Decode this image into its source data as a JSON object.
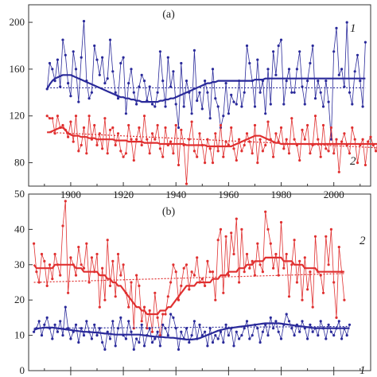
{
  "chart_data": [
    {
      "type": "line",
      "panel_label": "(a)",
      "x_start": 1891,
      "xlim": [
        1884,
        2014
      ],
      "ylim": [
        60,
        215
      ],
      "y_ticks": [
        80,
        120,
        160,
        200
      ],
      "x_ticks": [
        1900,
        1920,
        1940,
        1960,
        1980,
        2000
      ],
      "x_tick_labels_shown": true,
      "grid": false,
      "series": [
        {
          "name": "1",
          "color": "#2a2a9a",
          "values": [
            143,
            165,
            160,
            150,
            168,
            145,
            185,
            172,
            148,
            137,
            175,
            160,
            132,
            170,
            201,
            150,
            135,
            140,
            180,
            168,
            155,
            170,
            148,
            152,
            185,
            158,
            140,
            135,
            165,
            170,
            122,
            148,
            160,
            140,
            130,
            145,
            155,
            150,
            133,
            145,
            130,
            128,
            140,
            175,
            150,
            128,
            170,
            145,
            158,
            130,
            110,
            165,
            128,
            150,
            140,
            122,
            176,
            133,
            140,
            126,
            150,
            140,
            118,
            160,
            135,
            128,
            110,
            120,
            148,
            122,
            138,
            132,
            130,
            150,
            128,
            140,
            180,
            165,
            150,
            128,
            168,
            140,
            150,
            122,
            160,
            130,
            175,
            155,
            180,
            185,
            130,
            150,
            160,
            140,
            140,
            160,
            175,
            145,
            130,
            150,
            165,
            180,
            135,
            150,
            140,
            128,
            150,
            132,
            100,
            175,
            195,
            155,
            160,
            145,
            200,
            140,
            130,
            158,
            172,
            150,
            128,
            183
          ],
          "smooth": [
            143,
            147,
            150,
            152,
            153,
            154,
            155,
            155,
            155,
            155,
            154,
            153,
            152,
            151,
            150,
            149,
            148,
            147,
            146,
            145,
            144,
            143,
            142,
            141,
            140,
            139,
            138,
            137,
            136,
            136,
            135,
            135,
            134,
            134,
            133,
            133,
            132,
            132,
            132,
            132,
            132,
            132,
            132,
            133,
            133,
            134,
            134,
            135,
            135,
            136,
            137,
            138,
            139,
            140,
            141,
            142,
            143,
            144,
            145,
            146,
            147,
            148,
            148,
            149,
            149,
            150,
            150,
            150,
            150,
            150,
            150,
            150,
            150,
            150,
            150,
            150,
            150,
            150,
            150,
            151,
            151,
            151,
            151,
            152,
            152,
            152,
            152,
            152,
            152,
            152,
            152,
            152,
            152,
            152,
            152,
            152,
            152,
            152,
            152,
            152,
            152,
            152,
            152,
            152,
            152,
            152,
            152,
            152,
            152,
            152,
            152,
            152,
            152,
            152,
            152,
            152,
            152,
            152,
            152,
            152,
            152,
            152
          ],
          "trend": [
            144,
            144
          ]
        },
        {
          "name": "2",
          "color": "#e03030",
          "values": [
            120,
            118,
            118,
            105,
            120,
            110,
            112,
            108,
            102,
            115,
            98,
            120,
            90,
            95,
            110,
            88,
            120,
            100,
            112,
            95,
            105,
            92,
            118,
            88,
            108,
            110,
            95,
            105,
            90,
            85,
            88,
            112,
            100,
            82,
            100,
            110,
            95,
            120,
            100,
            88,
            105,
            100,
            112,
            92,
            85,
            110,
            95,
            98,
            88,
            112,
            78,
            108,
            95,
            62,
            100,
            115,
            90,
            85,
            105,
            95,
            80,
            100,
            92,
            80,
            105,
            90,
            112,
            85,
            98,
            95,
            110,
            92,
            82,
            100,
            90,
            95,
            105,
            98,
            88,
            112,
            80,
            100,
            90,
            95,
            115,
            100,
            85,
            105,
            98,
            110,
            92,
            100,
            88,
            118,
            100,
            95,
            82,
            108,
            100,
            112,
            88,
            95,
            120,
            100,
            85,
            112,
            92,
            90,
            110,
            88,
            100,
            72,
            98,
            105,
            95,
            88,
            110,
            100,
            80,
            95,
            100,
            78,
            98,
            102,
            95,
            90,
            100,
            88,
            102,
            98,
            95,
            100,
            90,
            82
          ],
          "smooth": [
            106,
            106,
            107,
            108,
            109,
            110,
            110,
            108,
            105,
            104,
            103,
            103,
            103,
            102,
            102,
            102,
            101,
            101,
            101,
            100,
            100,
            100,
            100,
            100,
            100,
            100,
            99,
            99,
            99,
            99,
            99,
            98,
            98,
            98,
            98,
            98,
            98,
            97,
            97,
            97,
            97,
            97,
            97,
            96,
            96,
            96,
            96,
            96,
            96,
            96,
            96,
            96,
            96,
            95,
            95,
            95,
            95,
            95,
            95,
            95,
            95,
            94,
            94,
            94,
            94,
            94,
            94,
            94,
            94,
            94,
            94,
            95,
            96,
            97,
            98,
            99,
            100,
            101,
            102,
            103,
            103,
            103,
            102,
            101,
            100,
            99,
            98,
            97,
            97,
            96,
            96,
            96,
            96,
            96,
            96,
            96,
            96,
            96,
            96,
            96,
            96,
            96,
            96,
            96,
            96,
            96,
            96,
            96,
            96,
            96,
            96,
            96,
            96,
            96,
            96,
            96,
            96,
            96,
            96,
            96,
            96,
            96,
            96,
            96,
            96,
            96,
            96,
            96,
            96,
            96,
            96,
            96,
            96,
            96
          ],
          "trend": [
            106,
            92
          ]
        }
      ]
    },
    {
      "type": "line",
      "panel_label": "(b)",
      "x_start": 1886,
      "xlim": [
        1884,
        2014
      ],
      "ylim": [
        0,
        50
      ],
      "y_ticks": [
        0,
        10,
        20,
        30,
        40,
        50
      ],
      "x_ticks": [
        1900,
        1920,
        1940,
        1960,
        1980,
        2000
      ],
      "x_tick_labels_shown": false,
      "grid": false,
      "series": [
        {
          "name": "2",
          "color": "#e03030",
          "values": [
            36,
            28,
            25,
            33,
            31,
            24,
            30,
            26,
            33,
            30,
            27,
            41,
            48,
            22,
            32,
            30,
            27,
            35,
            30,
            29,
            36,
            25,
            32,
            28,
            33,
            18,
            29,
            20,
            37,
            24,
            31,
            21,
            33,
            27,
            30,
            22,
            18,
            25,
            12,
            27,
            24,
            14,
            18,
            12,
            17,
            11,
            22,
            15,
            10,
            16,
            16,
            21,
            25,
            30,
            28,
            20,
            24,
            29,
            30,
            23,
            28,
            27,
            32,
            25,
            26,
            24,
            31,
            28,
            28,
            20,
            37,
            40,
            22,
            38,
            27,
            39,
            33,
            43,
            25,
            40,
            28,
            33,
            29,
            31,
            27,
            36,
            30,
            28,
            45,
            40,
            36,
            29,
            33,
            27,
            42,
            29,
            33,
            21,
            30,
            37,
            25,
            31,
            20,
            32,
            23,
            28,
            18,
            38,
            28,
            27,
            22,
            38,
            30,
            40,
            25,
            15,
            35,
            28,
            20
          ],
          "smooth": [
            30,
            29,
            29,
            29,
            29,
            29,
            29,
            29,
            30,
            30,
            30,
            30,
            30,
            30,
            30,
            30,
            29,
            29,
            29,
            28,
            28,
            28,
            28,
            28,
            28,
            27,
            27,
            27,
            26,
            26,
            25,
            25,
            24,
            24,
            23,
            22,
            21,
            20,
            19,
            18,
            18,
            17,
            17,
            16,
            16,
            16,
            16,
            16,
            17,
            17,
            17,
            18,
            18,
            19,
            20,
            21,
            22,
            23,
            24,
            24,
            24,
            24,
            25,
            25,
            25,
            25,
            25,
            25,
            26,
            26,
            26,
            27,
            27,
            27,
            28,
            28,
            28,
            28,
            29,
            29,
            29,
            30,
            30,
            30,
            31,
            31,
            31,
            31,
            32,
            32,
            32,
            32,
            32,
            32,
            32,
            31,
            31,
            31,
            31,
            30,
            30,
            30,
            30,
            29,
            29,
            29,
            29,
            29,
            28,
            28,
            28,
            28,
            28,
            28,
            28,
            28,
            28,
            28,
            28
          ],
          "trend": [
            25,
            27.5
          ]
        },
        {
          "name": "1",
          "color": "#2a2a9a",
          "values": [
            11,
            12,
            14,
            10,
            13,
            15,
            12,
            9,
            13,
            11,
            14,
            10,
            18,
            12,
            9,
            11,
            13,
            8,
            12,
            10,
            14,
            11,
            9,
            13,
            10,
            12,
            8,
            6,
            11,
            9,
            14,
            7,
            12,
            15,
            10,
            9,
            14,
            11,
            6,
            9,
            8,
            13,
            7,
            10,
            12,
            8,
            9,
            11,
            7,
            13,
            12,
            10,
            16,
            15,
            12,
            6,
            11,
            9,
            12,
            8,
            10,
            14,
            9,
            13,
            10,
            11,
            7,
            12,
            8,
            10,
            9,
            11,
            8,
            13,
            10,
            12,
            7,
            11,
            9,
            10,
            12,
            14,
            9,
            10,
            13,
            12,
            8,
            11,
            13,
            10,
            15,
            12,
            14,
            11,
            9,
            13,
            16,
            14,
            12,
            10,
            13,
            11,
            14,
            12,
            9,
            13,
            11,
            12,
            10,
            14,
            12,
            9,
            13,
            11,
            10,
            12,
            14,
            9,
            12,
            10,
            13
          ],
          "smooth": [
            11.5,
            11.8,
            12,
            12.1,
            12.2,
            12.2,
            12.2,
            12.2,
            12.1,
            12,
            11.9,
            11.8,
            11.7,
            11.6,
            11.5,
            11.4,
            11.3,
            11.2,
            11.1,
            11,
            11,
            10.9,
            10.9,
            10.8,
            10.8,
            10.7,
            10.6,
            10.5,
            10.5,
            10.4,
            10.3,
            10.2,
            10.2,
            10.2,
            10.2,
            10.2,
            10.2,
            10.2,
            10.2,
            10.2,
            10.2,
            10.1,
            10,
            9.9,
            9.8,
            9.7,
            9.6,
            9.6,
            9.5,
            9.5,
            9.4,
            9.4,
            9.3,
            9.3,
            9.2,
            9.1,
            9,
            8.9,
            8.8,
            8.8,
            8.8,
            8.9,
            9,
            9.2,
            9.5,
            9.8,
            10.1,
            10.4,
            10.7,
            11,
            11.3,
            11.5,
            11.7,
            11.9,
            12,
            12.1,
            12.2,
            12.3,
            12.4,
            12.5,
            12.6,
            12.7,
            12.8,
            12.9,
            13,
            13.1,
            13.2,
            13.3,
            13.4,
            13.4,
            13.4,
            13.4,
            13.4,
            13.4,
            13.3,
            13.2,
            13.1,
            13,
            12.9,
            12.8,
            12.7,
            12.6,
            12.5,
            12.4,
            12.3,
            12.2,
            12.1,
            12,
            12,
            12,
            12,
            12,
            12,
            12,
            12,
            12,
            12,
            12,
            12,
            12,
            12
          ],
          "trend": [
            12,
            12.5
          ]
        }
      ]
    }
  ]
}
